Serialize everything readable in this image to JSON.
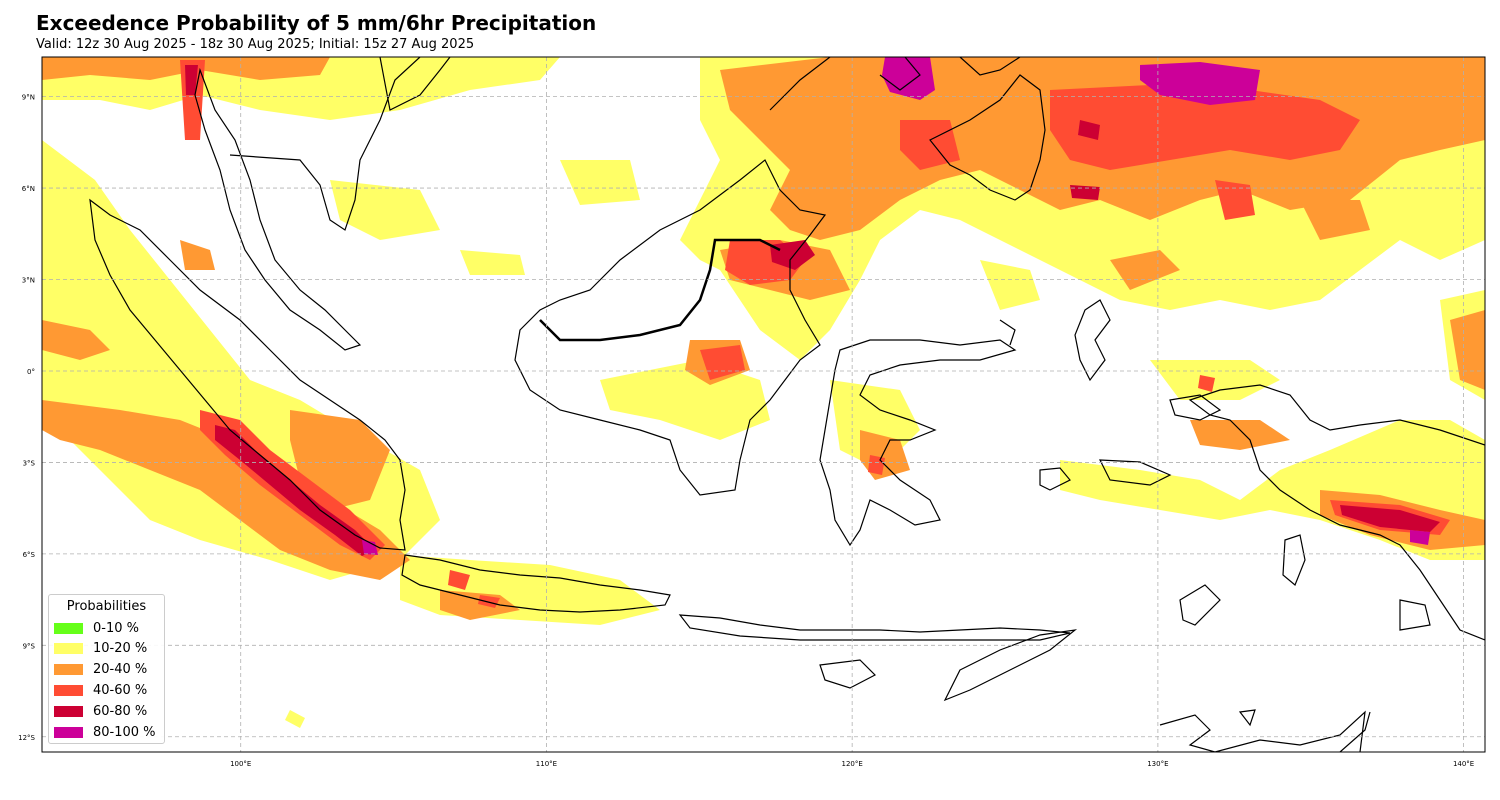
{
  "title": "Exceedence Probability of 5 mm/6hr Precipitation",
  "subtitle": "Valid: 12z 30 Aug 2025 - 18z 30 Aug 2025; Initial: 15z 27 Aug 2025",
  "map": {
    "region": "Indonesia / Maritime Continent",
    "extent": {
      "lon_min": 93.5,
      "lon_max": 140.7,
      "lat_min": -12.5,
      "lat_max": 10.3
    },
    "gridlines": true,
    "gridline_style": "dashed",
    "lon_ticks": [
      100,
      110,
      120,
      130,
      140
    ],
    "lon_tick_labels": [
      "100°E",
      "110°E",
      "120°E",
      "130°E",
      "140°E"
    ],
    "lat_ticks": [
      9,
      6,
      3,
      0,
      -3,
      -6,
      -9,
      -12
    ],
    "lat_tick_labels": [
      "9°N",
      "6°N",
      "3°N",
      "0°",
      "3°S",
      "6°S",
      "9°S",
      "12°S"
    ],
    "coastline_color": "#000000",
    "background_color": "#ffffff"
  },
  "legend": {
    "title": "Probabilities",
    "placement": "bottom-left",
    "items": [
      {
        "label": "0-10 %",
        "color": "#66ff19"
      },
      {
        "label": "10-20 %",
        "color": "#ffff66"
      },
      {
        "label": "20-40 %",
        "color": "#ff9933"
      },
      {
        "label": "40-60 %",
        "color": "#ff4c33"
      },
      {
        "label": "60-80 %",
        "color": "#cc0033"
      },
      {
        "label": "80-100 %",
        "color": "#cc0099"
      }
    ]
  }
}
